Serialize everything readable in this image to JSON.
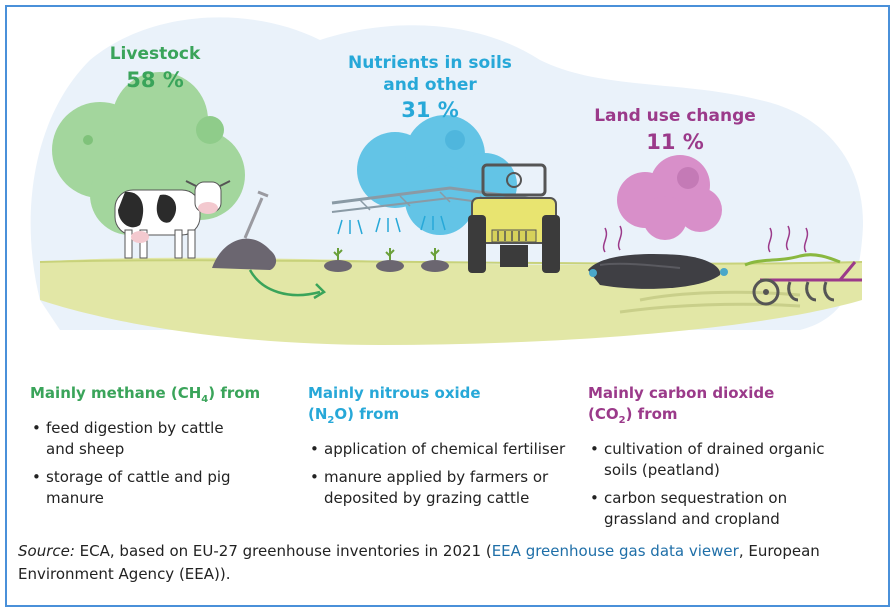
{
  "sources": {
    "livestock": {
      "name": "Livestock",
      "share": "58 %",
      "color": "#3aa45a"
    },
    "nutrients": {
      "name_line1": "Nutrients in soils",
      "name_line2": "and other",
      "share": "31 %",
      "color": "#27a8d8"
    },
    "land_use": {
      "name": "Land use change",
      "share": "11 %",
      "color": "#9b3a8a"
    }
  },
  "columns": {
    "methane": {
      "title_pre": "Mainly methane (CH",
      "title_sub": "4",
      "title_post": ") from",
      "items": [
        "feed digestion by cattle and sheep",
        "storage of cattle and pig manure"
      ]
    },
    "nitrous": {
      "title_line1": "Mainly nitrous oxide",
      "title_pre": "(N",
      "title_sub": "2",
      "title_post": "O) from",
      "items": [
        "application of chemical fertiliser",
        "manure applied by farmers or deposited by grazing cattle"
      ]
    },
    "carbon": {
      "title_line1": "Mainly carbon dioxide",
      "title_pre": "(CO",
      "title_sub": "2",
      "title_post": ") from",
      "items": [
        "cultivation of drained organic soils (peatland)",
        "carbon sequestration on grassland and cropland"
      ]
    }
  },
  "source_note": {
    "label": "Source:",
    "text": " ECA, based on EU-27 greenhouse inventories in 2021 (",
    "link": "EEA greenhouse gas data viewer",
    "tail": ", European Environment Agency (EEA))."
  },
  "colors": {
    "frame": "#4a90d9",
    "sky": "#e8f1fa",
    "ground": "#e3e8a8",
    "green_cloud": "#9fd49a",
    "blue_cloud": "#63c4e6",
    "purple_cloud": "#d88fc9"
  },
  "icons": [
    "cow-icon",
    "tree-cloud-icon",
    "manure-pile-icon",
    "shovel-icon",
    "tractor-icon",
    "sprayer-icon",
    "plow-icon",
    "arrow-icon"
  ]
}
